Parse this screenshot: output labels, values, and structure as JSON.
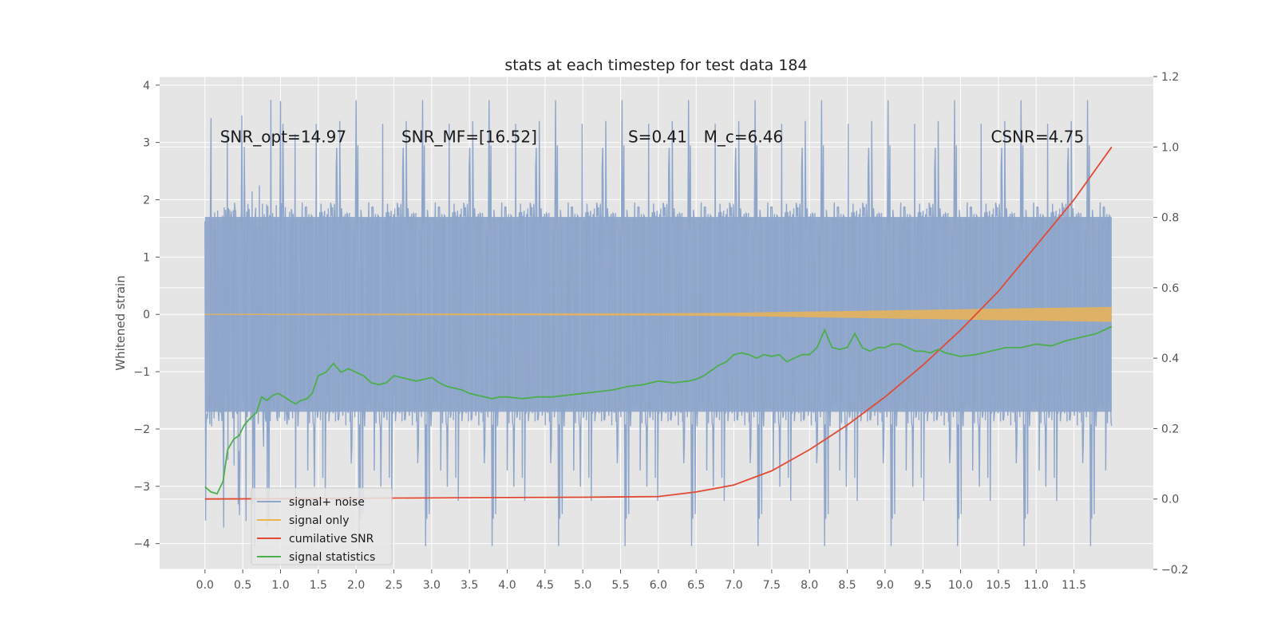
{
  "chart_data": {
    "type": "line",
    "title": "stats at each timestep for test data 184",
    "xlabel": "",
    "ylabel": "Whitened strain",
    "y2label": "",
    "xlim": [
      -0.6,
      12.55
    ],
    "ylim": [
      -4.45,
      4.15
    ],
    "y2lim": [
      -0.2,
      1.2
    ],
    "grid": true,
    "legend_position": "lower-left",
    "x_ticks": [
      "0.0",
      "0.5",
      "1.0",
      "1.5",
      "2.0",
      "2.5",
      "3.0",
      "3.5",
      "4.0",
      "4.5",
      "5.0",
      "5.5",
      "6.0",
      "6.5",
      "7.0",
      "7.5",
      "8.0",
      "8.5",
      "9.0",
      "9.5",
      "10.0",
      "10.5",
      "11.0",
      "11.5"
    ],
    "y_ticks": [
      "4",
      "3",
      "2",
      "1",
      "0",
      "−1",
      "−2",
      "−3",
      "−4"
    ],
    "y2_ticks": [
      "1.2",
      "1.0",
      "0.8",
      "0.6",
      "0.4",
      "0.2",
      "0.0",
      "−0.2"
    ],
    "annotations": [
      {
        "text": "SNR_opt=14.97",
        "x": 0.2,
        "y": 3.0
      },
      {
        "text": "SNR_MF=[16.52]",
        "x": 2.6,
        "y": 3.0
      },
      {
        "text": "S=0.41",
        "x": 5.6,
        "y": 3.0
      },
      {
        "text": "M_c=6.46",
        "x": 6.6,
        "y": 3.0
      },
      {
        "text": "CSNR=4.75",
        "x": 10.4,
        "y": 3.0
      }
    ],
    "series": [
      {
        "name": "signal+ noise",
        "color": "#8fa6cb",
        "axis": "left",
        "style": "noise",
        "x_range": [
          0.0,
          12.0
        ],
        "band": [
          -1.7,
          1.7
        ],
        "peak_range": [
          -4.05,
          3.8
        ]
      },
      {
        "name": "signal only",
        "color": "#f0b44c",
        "axis": "left",
        "style": "chirp",
        "x": [
          0.0,
          6.0,
          7.0,
          8.0,
          9.0,
          10.0,
          11.0,
          12.0
        ],
        "amplitude": [
          0.01,
          0.02,
          0.03,
          0.05,
          0.07,
          0.09,
          0.11,
          0.13
        ]
      },
      {
        "name": "cumilative SNR",
        "color": "#e24a33",
        "axis": "right",
        "x": [
          0.0,
          1.0,
          2.0,
          3.0,
          4.0,
          5.0,
          6.0,
          6.5,
          7.0,
          7.5,
          8.0,
          8.5,
          9.0,
          9.5,
          10.0,
          10.5,
          11.0,
          11.5,
          12.0
        ],
        "values": [
          0.0,
          0.001,
          0.002,
          0.003,
          0.004,
          0.005,
          0.007,
          0.02,
          0.04,
          0.08,
          0.14,
          0.21,
          0.29,
          0.38,
          0.48,
          0.59,
          0.72,
          0.85,
          1.0
        ]
      },
      {
        "name": "signal statistics",
        "color": "#4cae4c",
        "axis": "right",
        "x": [
          0.0,
          0.08,
          0.16,
          0.24,
          0.3,
          0.38,
          0.45,
          0.52,
          0.6,
          0.68,
          0.75,
          0.82,
          0.9,
          0.97,
          1.05,
          1.12,
          1.2,
          1.27,
          1.35,
          1.42,
          1.5,
          1.6,
          1.7,
          1.8,
          1.9,
          2.0,
          2.1,
          2.2,
          2.3,
          2.4,
          2.5,
          2.6,
          2.7,
          2.8,
          2.9,
          3.0,
          3.1,
          3.2,
          3.3,
          3.4,
          3.5,
          3.6,
          3.7,
          3.8,
          3.9,
          4.0,
          4.2,
          4.4,
          4.6,
          4.8,
          5.0,
          5.2,
          5.4,
          5.6,
          5.8,
          6.0,
          6.2,
          6.4,
          6.5,
          6.6,
          6.7,
          6.8,
          6.9,
          7.0,
          7.1,
          7.2,
          7.3,
          7.4,
          7.5,
          7.6,
          7.7,
          7.8,
          7.9,
          8.0,
          8.1,
          8.2,
          8.3,
          8.4,
          8.5,
          8.6,
          8.7,
          8.8,
          8.9,
          9.0,
          9.1,
          9.2,
          9.3,
          9.4,
          9.5,
          9.6,
          9.7,
          9.8,
          9.9,
          10.0,
          10.2,
          10.4,
          10.6,
          10.8,
          11.0,
          11.2,
          11.4,
          11.6,
          11.8,
          12.0
        ],
        "values": [
          0.035,
          0.02,
          0.015,
          0.05,
          0.14,
          0.17,
          0.18,
          0.21,
          0.23,
          0.245,
          0.29,
          0.28,
          0.295,
          0.3,
          0.29,
          0.28,
          0.27,
          0.28,
          0.285,
          0.3,
          0.35,
          0.36,
          0.385,
          0.36,
          0.37,
          0.36,
          0.35,
          0.33,
          0.325,
          0.33,
          0.35,
          0.345,
          0.34,
          0.335,
          0.34,
          0.345,
          0.33,
          0.32,
          0.315,
          0.31,
          0.3,
          0.295,
          0.29,
          0.285,
          0.29,
          0.29,
          0.285,
          0.29,
          0.29,
          0.295,
          0.3,
          0.305,
          0.31,
          0.32,
          0.325,
          0.335,
          0.33,
          0.335,
          0.34,
          0.35,
          0.365,
          0.38,
          0.39,
          0.41,
          0.415,
          0.41,
          0.4,
          0.41,
          0.405,
          0.41,
          0.39,
          0.4,
          0.41,
          0.41,
          0.43,
          0.48,
          0.43,
          0.425,
          0.43,
          0.47,
          0.43,
          0.42,
          0.43,
          0.43,
          0.44,
          0.44,
          0.43,
          0.42,
          0.42,
          0.415,
          0.425,
          0.415,
          0.41,
          0.405,
          0.41,
          0.42,
          0.43,
          0.43,
          0.44,
          0.435,
          0.45,
          0.46,
          0.47,
          0.49
        ]
      }
    ]
  }
}
